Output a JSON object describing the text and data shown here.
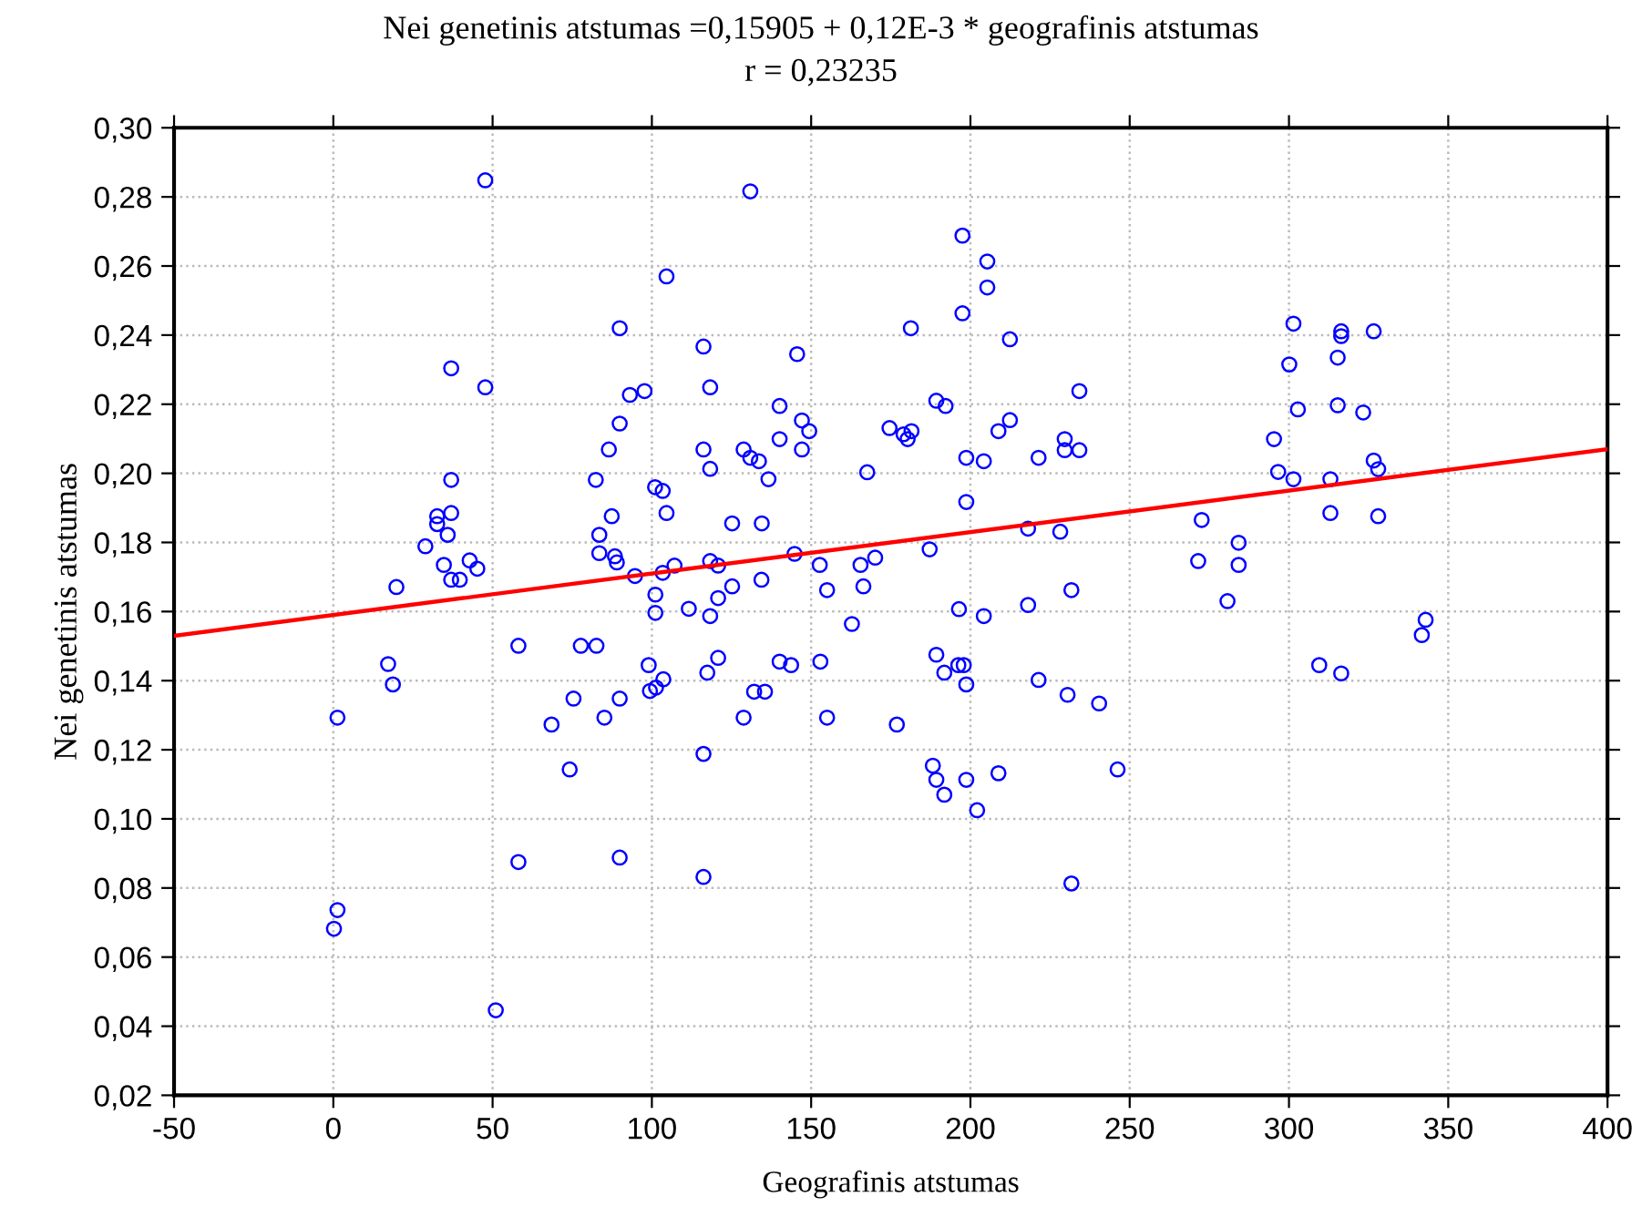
{
  "chart_data": {
    "type": "scatter",
    "title": "Nei genetinis atstumas =0,15905 + 0,12E-3 * geografinis atstumas",
    "subtitle": "r = 0,23235",
    "xlabel": "Geografinis atstumas",
    "ylabel": "Nei genetinis atstumas",
    "xlim": [
      -50,
      400
    ],
    "xticks": [
      -50,
      0,
      50,
      100,
      150,
      200,
      250,
      300,
      350,
      400
    ],
    "ylim": [
      0.02,
      0.3
    ],
    "yticks": [
      {
        "value": 0.02,
        "label": "0,02"
      },
      {
        "value": 0.04,
        "label": "0,04"
      },
      {
        "value": 0.06,
        "label": "0,06"
      },
      {
        "value": 0.08,
        "label": "0,08"
      },
      {
        "value": 0.1,
        "label": "0,10"
      },
      {
        "value": 0.12,
        "label": "0,12"
      },
      {
        "value": 0.14,
        "label": "0,14"
      },
      {
        "value": 0.16,
        "label": "0,16"
      },
      {
        "value": 0.18,
        "label": "0,18"
      },
      {
        "value": 0.2,
        "label": "0,20"
      },
      {
        "value": 0.22,
        "label": "0,22"
      },
      {
        "value": 0.24,
        "label": "0,24"
      },
      {
        "value": 0.26,
        "label": "0,26"
      },
      {
        "value": 0.28,
        "label": "0,28"
      },
      {
        "value": 0.3,
        "label": "0,30"
      }
    ],
    "grid": true,
    "marker": "circle",
    "series": [
      {
        "color": "#0000ff",
        "x": [
          47.7,
          37.0,
          47.7,
          37.0,
          32.6,
          32.6,
          37.0,
          35.9,
          28.9,
          34.7,
          42.8,
          45.2,
          37.0,
          39.7,
          19.8,
          58.1,
          77.7,
          82.6,
          17.2,
          82.4,
          83.5,
          83.5,
          130.9,
          104.6,
          89.9,
          197.5,
          205.3,
          205.3,
          197.5,
          181.3,
          212.4,
          116.2,
          145.6,
          118.3,
          93.1,
          97.7,
          234.2,
          140.1,
          189.3,
          192.2,
          89.9,
          147.1,
          149.4,
          174.6,
          181.5,
          179.0,
          180.3,
          212.4,
          208.8,
          140.1,
          86.5,
          116.2,
          128.8,
          130.9,
          133.6,
          147.1,
          118.3,
          136.6,
          167.6,
          198.7,
          204.2,
          221.4,
          229.6,
          229.6,
          234.2,
          101.0,
          103.4,
          104.6,
          87.4,
          198.7,
          125.2,
          134.5,
          88.4,
          89.0,
          94.7,
          103.4,
          107.1,
          118.3,
          120.8,
          125.2,
          134.4,
          144.8,
          152.7,
          155.0,
          165.5,
          170.1,
          166.4,
          187.2,
          218.1,
          228.2,
          101.1,
          101.1,
          120.8,
          111.6,
          118.3,
          162.8,
          196.4,
          204.2,
          218.1,
          231.7,
          301.4,
          316.4,
          316.4,
          326.6,
          300.1,
          315.3,
          302.8,
          315.3,
          323.3,
          295.3,
          296.6,
          301.4,
          313.0,
          326.6,
          328.0,
          272.6,
          313.0,
          328.0,
          284.2,
          271.5,
          284.2,
          280.7,
          342.9,
          341.7,
          18.7,
          1.3,
          1.3,
          0.2,
          51.0,
          58.1,
          75.4,
          68.5,
          74.2,
          85.1,
          89.9,
          89.9,
          99.0,
          99.4,
          101.3,
          103.6,
          117.4,
          120.8,
          116.2,
          116.2,
          128.8,
          132.1,
          135.5,
          140.1,
          143.7,
          152.9,
          155.0,
          176.9,
          189.3,
          191.8,
          196.2,
          197.9,
          198.7,
          188.2,
          189.3,
          191.8,
          198.7,
          202.1,
          208.8,
          221.4,
          230.5,
          231.7,
          240.4,
          246.2,
          309.5,
          316.4
        ],
        "values": [
          0.2848,
          0.2304,
          0.2249,
          0.1981,
          0.1876,
          0.1853,
          0.1885,
          0.1822,
          0.1789,
          0.1735,
          0.1748,
          0.1724,
          0.1692,
          0.1692,
          0.1671,
          0.1501,
          0.1501,
          0.1501,
          0.1448,
          0.1981,
          0.1822,
          0.1769,
          0.2816,
          0.257,
          0.242,
          0.2688,
          0.2613,
          0.2538,
          0.2463,
          0.242,
          0.2388,
          0.2367,
          0.2345,
          0.2249,
          0.2227,
          0.2238,
          0.2238,
          0.2195,
          0.221,
          0.2195,
          0.2144,
          0.2153,
          0.2122,
          0.2131,
          0.2122,
          0.2113,
          0.2099,
          0.2154,
          0.2122,
          0.2099,
          0.2069,
          0.2069,
          0.2069,
          0.2045,
          0.2035,
          0.2069,
          0.2013,
          0.1983,
          0.2003,
          0.2045,
          0.2035,
          0.2045,
          0.2099,
          0.2067,
          0.2067,
          0.196,
          0.1949,
          0.1885,
          0.1876,
          0.1917,
          0.1855,
          0.1855,
          0.176,
          0.1742,
          0.1703,
          0.1712,
          0.1733,
          0.1746,
          0.1733,
          0.1673,
          0.1692,
          0.1767,
          0.1735,
          0.1662,
          0.1735,
          0.1756,
          0.1673,
          0.178,
          0.184,
          0.1831,
          0.1649,
          0.1596,
          0.1639,
          0.1608,
          0.1587,
          0.1564,
          0.1607,
          0.1587,
          0.1619,
          0.1662,
          0.2433,
          0.2411,
          0.2397,
          0.2411,
          0.2315,
          0.2335,
          0.2185,
          0.2197,
          0.2176,
          0.2099,
          0.2004,
          0.1983,
          0.1983,
          0.2037,
          0.2012,
          0.1865,
          0.1885,
          0.1876,
          0.1799,
          0.1746,
          0.1735,
          0.163,
          0.1576,
          0.1532,
          0.1389,
          0.1293,
          0.0736,
          0.0682,
          0.0446,
          0.0875,
          0.1348,
          0.1273,
          0.1143,
          0.1293,
          0.1348,
          0.0888,
          0.1445,
          0.137,
          0.138,
          0.1404,
          0.1423,
          0.1466,
          0.1188,
          0.0832,
          0.1293,
          0.1368,
          0.1368,
          0.1455,
          0.1445,
          0.1455,
          0.1293,
          0.1273,
          0.1475,
          0.1423,
          0.1445,
          0.1445,
          0.1389,
          0.1154,
          0.1113,
          0.107,
          0.1113,
          0.1025,
          0.1132,
          0.1402,
          0.1359,
          0.0813,
          0.1334,
          0.1143,
          0.1445,
          0.1421
        ]
      },
      {
        "type": "line",
        "marker": "none",
        "color": "#ff0000",
        "x": [
          -50,
          400
        ],
        "values": [
          0.153,
          0.207
        ]
      }
    ]
  }
}
